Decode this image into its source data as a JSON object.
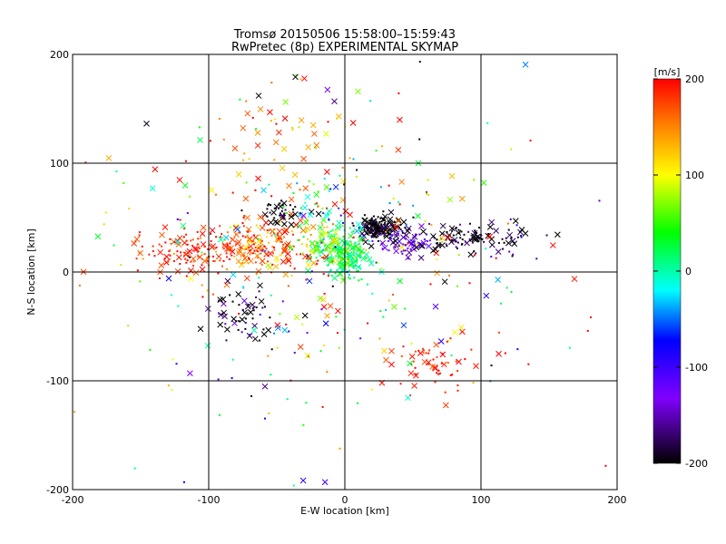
{
  "chart_data": {
    "type": "scatter",
    "title": "Tromsø 20150506 15:58:00–15:59:43",
    "subtitle": "RwPretec (8p) EXPERIMENTAL SKYMAP",
    "xlabel": "E-W location [km]",
    "ylabel": "N-S location [km]",
    "xlim": [
      -200,
      200
    ],
    "ylim": [
      -200,
      200
    ],
    "x_ticks": [
      "-200",
      "-100",
      "0",
      "100",
      "200"
    ],
    "y_ticks": [
      "-200",
      "-100",
      "0",
      "100",
      "200"
    ],
    "grid": true,
    "colorbar": {
      "label": "[m/s]",
      "range": [
        -200,
        200
      ],
      "ticks": [
        "200",
        "100",
        "0",
        "-100",
        "-200"
      ],
      "colormap": "rainbow (black-purple-blue-cyan-green-yellow-red)"
    },
    "marker_types": [
      "x (large detections)",
      "dot (small detections)"
    ],
    "clusters": [
      {
        "center": [
          25,
          40
        ],
        "spread": [
          9,
          5
        ],
        "count": 160,
        "velocity": -200,
        "vel_sd": 15
      },
      {
        "center": [
          45,
          28
        ],
        "spread": [
          10,
          6
        ],
        "count": 70,
        "velocity": -140,
        "vel_sd": 25
      },
      {
        "center": [
          85,
          32
        ],
        "spread": [
          14,
          6
        ],
        "count": 80,
        "velocity": -195,
        "vel_sd": 20
      },
      {
        "center": [
          120,
          30
        ],
        "spread": [
          15,
          10
        ],
        "count": 25,
        "velocity": -190,
        "vel_sd": 20
      },
      {
        "center": [
          0,
          15
        ],
        "spread": [
          9,
          12
        ],
        "count": 170,
        "velocity": 15,
        "vel_sd": 25
      },
      {
        "center": [
          -15,
          25
        ],
        "spread": [
          10,
          10
        ],
        "count": 60,
        "velocity": 80,
        "vel_sd": 40
      },
      {
        "center": [
          -70,
          20
        ],
        "spread": [
          22,
          12
        ],
        "count": 170,
        "velocity": 175,
        "vel_sd": 30
      },
      {
        "center": [
          -120,
          20
        ],
        "spread": [
          18,
          10
        ],
        "count": 90,
        "velocity": 185,
        "vel_sd": 20
      },
      {
        "center": [
          -45,
          35
        ],
        "spread": [
          15,
          15
        ],
        "count": 60,
        "velocity": 140,
        "vel_sd": 60
      },
      {
        "center": [
          -45,
          55
        ],
        "spread": [
          10,
          6
        ],
        "count": 40,
        "velocity": -200,
        "vel_sd": 10
      },
      {
        "center": [
          -75,
          -40
        ],
        "spread": [
          12,
          15
        ],
        "count": 60,
        "velocity": -190,
        "vel_sd": 30
      },
      {
        "center": [
          65,
          -85
        ],
        "spread": [
          15,
          12
        ],
        "count": 55,
        "velocity": 190,
        "vel_sd": 15
      },
      {
        "center": [
          -15,
          55
        ],
        "spread": [
          10,
          12
        ],
        "count": 40,
        "velocity": 40,
        "vel_sd": 80
      },
      {
        "center": [
          -60,
          120
        ],
        "spread": [
          40,
          30
        ],
        "count": 60,
        "velocity": 150,
        "vel_sd": 60
      },
      {
        "center": [
          0,
          0
        ],
        "spread": [
          90,
          70
        ],
        "count": 300,
        "velocity": 60,
        "vel_sd": 140
      }
    ]
  }
}
